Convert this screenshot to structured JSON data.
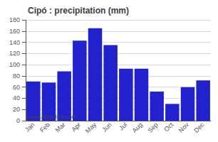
{
  "chart_data": {
    "type": "bar",
    "title": "Cipó : precipitation (mm)",
    "categories": [
      "Jan",
      "Feb",
      "Mar",
      "Apr",
      "May",
      "Jun",
      "Jul",
      "Aug",
      "Sep",
      "Oct",
      "Nov",
      "Dec"
    ],
    "values": [
      70,
      68,
      88,
      143,
      165,
      135,
      93,
      93,
      52,
      30,
      60,
      72
    ],
    "color": "#2222CC",
    "ylim": [
      0,
      180
    ],
    "yticks": [
      0,
      20,
      40,
      60,
      80,
      100,
      120,
      140,
      160,
      180
    ],
    "grid": true,
    "annotations": [
      "www.allmetsat.com"
    ]
  }
}
